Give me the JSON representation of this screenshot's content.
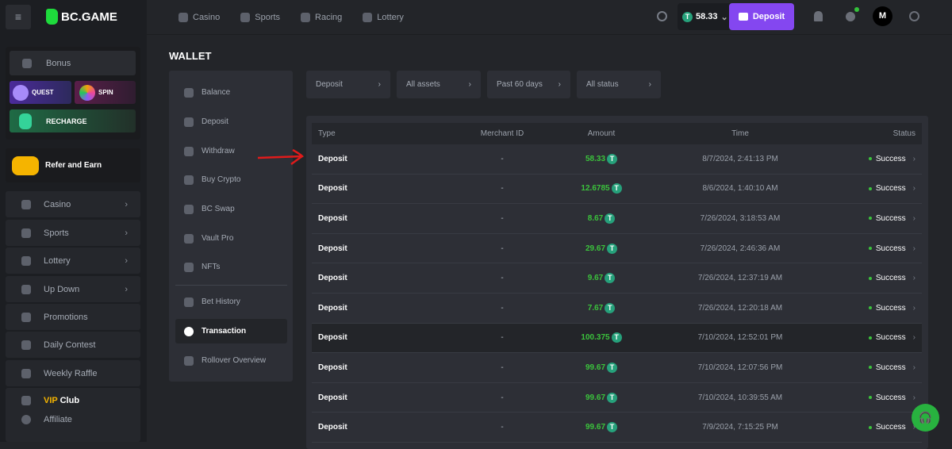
{
  "header": {
    "logo": "BC.GAME",
    "nav": [
      "Casino",
      "Sports",
      "Racing",
      "Lottery"
    ],
    "balance": "58.33",
    "deposit_label": "Deposit",
    "avatar_letter": "M"
  },
  "sidebar": {
    "bonus": "Bonus",
    "quest": "QUEST",
    "spin": "SPIN",
    "recharge": "RECHARGE",
    "refer": "Refer and Earn",
    "items": [
      {
        "label": "Casino",
        "chev": true
      },
      {
        "label": "Sports",
        "chev": true
      },
      {
        "label": "Lottery",
        "chev": true
      },
      {
        "label": "Up Down",
        "chev": true
      },
      {
        "label": "Promotions"
      },
      {
        "label": "Daily Contest"
      },
      {
        "label": "Weekly Raffle"
      }
    ],
    "vip_a": "VIP",
    "vip_b": "Club",
    "affiliate": "Affiliate"
  },
  "wallet": {
    "title": "WALLET",
    "nav": [
      "Balance",
      "Deposit",
      "Withdraw",
      "Buy Crypto",
      "BC Swap",
      "Vault Pro",
      "NFTs",
      "Bet History",
      "Transaction",
      "Rollover Overview"
    ],
    "active": "Transaction"
  },
  "filters": [
    "Deposit",
    "All assets",
    "Past 60 days",
    "All status"
  ],
  "table": {
    "columns": [
      "Type",
      "Merchant ID",
      "Amount",
      "Time",
      "Status"
    ],
    "rows": [
      {
        "type": "Deposit",
        "merchant": "-",
        "amount": "58.33",
        "time": "8/7/2024, 2:41:13 PM",
        "status": "Success"
      },
      {
        "type": "Deposit",
        "merchant": "-",
        "amount": "12.6785",
        "time": "8/6/2024, 1:40:10 AM",
        "status": "Success"
      },
      {
        "type": "Deposit",
        "merchant": "-",
        "amount": "8.67",
        "time": "7/26/2024, 3:18:53 AM",
        "status": "Success"
      },
      {
        "type": "Deposit",
        "merchant": "-",
        "amount": "29.67",
        "time": "7/26/2024, 2:46:36 AM",
        "status": "Success"
      },
      {
        "type": "Deposit",
        "merchant": "-",
        "amount": "9.67",
        "time": "7/26/2024, 12:37:19 AM",
        "status": "Success"
      },
      {
        "type": "Deposit",
        "merchant": "-",
        "amount": "7.67",
        "time": "7/26/2024, 12:20:18 AM",
        "status": "Success"
      },
      {
        "type": "Deposit",
        "merchant": "-",
        "amount": "100.375",
        "time": "7/10/2024, 12:52:01 PM",
        "status": "Success"
      },
      {
        "type": "Deposit",
        "merchant": "-",
        "amount": "99.67",
        "time": "7/10/2024, 12:07:56 PM",
        "status": "Success"
      },
      {
        "type": "Deposit",
        "merchant": "-",
        "amount": "99.67",
        "time": "7/10/2024, 10:39:55 AM",
        "status": "Success"
      },
      {
        "type": "Deposit",
        "merchant": "-",
        "amount": "99.67",
        "time": "7/9/2024, 7:15:25 PM",
        "status": "Success"
      }
    ]
  },
  "colors": {
    "accent": "#8447f0",
    "success": "#3bc33c",
    "tether": "#26a17b",
    "annotation_arrow": "#e01b1b"
  }
}
